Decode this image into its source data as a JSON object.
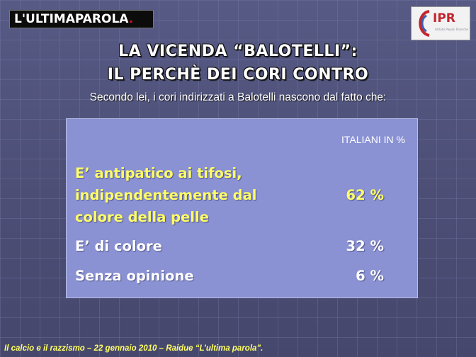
{
  "logo_left": {
    "text": "L'ULTIMAPAROLA",
    "dot": "."
  },
  "logo_right": {
    "text": "IPR",
    "sub": "Istituto Piepoli Ricerche"
  },
  "title": {
    "line1": "LA VICENDA “BALOTELLI”:",
    "line2": "IL PERCHÈ DEI CORI CONTRO"
  },
  "subtitle": "Secondo lei, i cori indirizzati a Balotelli nascono dal fatto che:",
  "table": {
    "column_header": "ITALIANI IN %",
    "rows": [
      {
        "label_lines": [
          "E’ antipatico ai tifosi,",
          "indipendentemente dal",
          "colore della pelle"
        ],
        "value": "62 %"
      },
      {
        "label": "E’ di colore",
        "value": "32 %"
      },
      {
        "label": "Senza opinione",
        "value": "6 %"
      }
    ]
  },
  "chart_data": {
    "type": "table",
    "columns": [
      "",
      "ITALIANI IN %"
    ],
    "categories": [
      "E’ antipatico ai tifosi, indipendentemente dal colore della pelle",
      "E’ di colore",
      "Senza opinione"
    ],
    "values": [
      62,
      32,
      6
    ],
    "unit": "%"
  },
  "footer": "Il calcio e il razzismo – 22 gennaio 2010 – Raidue “L’ultima parola”.",
  "colors": {
    "background": "#4f5178",
    "panel": "#8a92d4",
    "highlight": "#ffff66",
    "logo_red": "#c2262e"
  }
}
